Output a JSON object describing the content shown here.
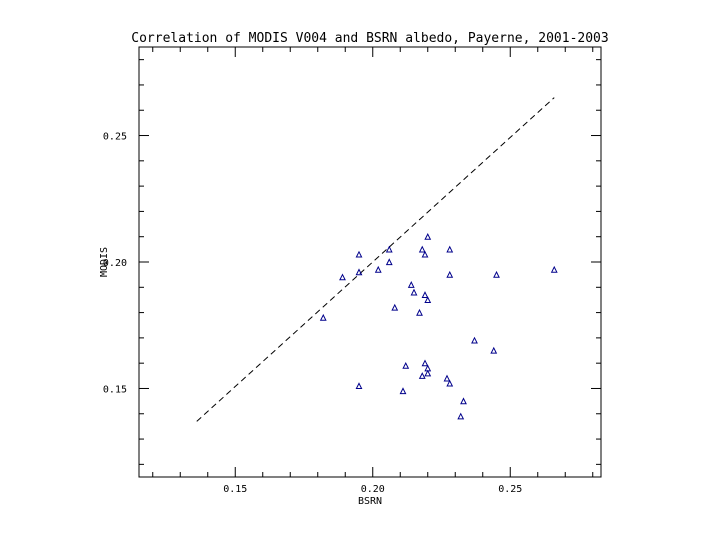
{
  "chart_data": {
    "type": "scatter",
    "title": "Correlation of MODIS V004 and BSRN albedo, Payerne, 2001-2003",
    "xlabel": "BSRN",
    "ylabel": "MODIS",
    "xlim": [
      0.115,
      0.283
    ],
    "ylim": [
      0.115,
      0.285
    ],
    "xticks": [
      0.15,
      0.2,
      0.25
    ],
    "yticks": [
      0.15,
      0.2,
      0.25
    ],
    "xtick_labels": [
      "0.15",
      "0.20",
      "0.25"
    ],
    "ytick_labels": [
      "0.15",
      "0.20",
      "0.25"
    ],
    "grid": false,
    "marker_color": "#00008b",
    "reference_line": {
      "style": "dashed",
      "x": [
        0.136,
        0.266
      ],
      "y": [
        0.137,
        0.265
      ]
    },
    "points": [
      {
        "x": 0.182,
        "y": 0.178
      },
      {
        "x": 0.189,
        "y": 0.194
      },
      {
        "x": 0.195,
        "y": 0.203
      },
      {
        "x": 0.195,
        "y": 0.196
      },
      {
        "x": 0.195,
        "y": 0.151
      },
      {
        "x": 0.202,
        "y": 0.197
      },
      {
        "x": 0.206,
        "y": 0.205
      },
      {
        "x": 0.206,
        "y": 0.2
      },
      {
        "x": 0.208,
        "y": 0.182
      },
      {
        "x": 0.211,
        "y": 0.149
      },
      {
        "x": 0.212,
        "y": 0.159
      },
      {
        "x": 0.214,
        "y": 0.191
      },
      {
        "x": 0.215,
        "y": 0.188
      },
      {
        "x": 0.217,
        "y": 0.18
      },
      {
        "x": 0.218,
        "y": 0.205
      },
      {
        "x": 0.218,
        "y": 0.155
      },
      {
        "x": 0.219,
        "y": 0.203
      },
      {
        "x": 0.219,
        "y": 0.187
      },
      {
        "x": 0.219,
        "y": 0.16
      },
      {
        "x": 0.22,
        "y": 0.21
      },
      {
        "x": 0.22,
        "y": 0.185
      },
      {
        "x": 0.22,
        "y": 0.158
      },
      {
        "x": 0.22,
        "y": 0.156
      },
      {
        "x": 0.227,
        "y": 0.154
      },
      {
        "x": 0.228,
        "y": 0.205
      },
      {
        "x": 0.228,
        "y": 0.195
      },
      {
        "x": 0.228,
        "y": 0.152
      },
      {
        "x": 0.232,
        "y": 0.139
      },
      {
        "x": 0.233,
        "y": 0.145
      },
      {
        "x": 0.237,
        "y": 0.169
      },
      {
        "x": 0.244,
        "y": 0.165
      },
      {
        "x": 0.245,
        "y": 0.195
      },
      {
        "x": 0.266,
        "y": 0.197
      }
    ]
  }
}
